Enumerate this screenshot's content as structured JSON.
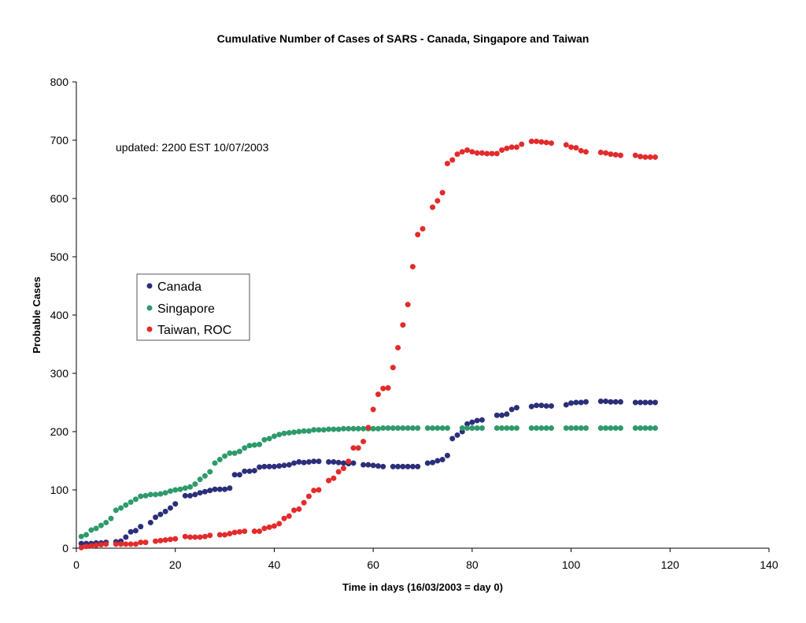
{
  "chart_data": {
    "type": "scatter",
    "title": "Cumulative Number of Cases of SARS - Canada, Singapore and Taiwan",
    "xlabel": "Time in days (16/03/2003 = day 0)",
    "ylabel": "Probable Cases",
    "xlim": [
      0,
      140
    ],
    "ylim": [
      0,
      800
    ],
    "xticks": [
      0,
      20,
      40,
      60,
      80,
      100,
      120,
      140
    ],
    "yticks": [
      0,
      100,
      200,
      300,
      400,
      500,
      600,
      700,
      800
    ],
    "annotation": "updated: 2200 EST 10/07/2003",
    "legend_position": "left-middle",
    "series": [
      {
        "name": "Canada",
        "color": "#2b2f7a",
        "points": [
          [
            1,
            8
          ],
          [
            2,
            8
          ],
          [
            3,
            8
          ],
          [
            4,
            9
          ],
          [
            5,
            9
          ],
          [
            6,
            10
          ],
          [
            8,
            11
          ],
          [
            9,
            12
          ],
          [
            10,
            19
          ],
          [
            11,
            28
          ],
          [
            12,
            30
          ],
          [
            13,
            37
          ],
          [
            15,
            44
          ],
          [
            16,
            53
          ],
          [
            17,
            58
          ],
          [
            18,
            63
          ],
          [
            19,
            69
          ],
          [
            20,
            76
          ],
          [
            22,
            90
          ],
          [
            23,
            90
          ],
          [
            24,
            92
          ],
          [
            25,
            95
          ],
          [
            26,
            97
          ],
          [
            27,
            99
          ],
          [
            28,
            101
          ],
          [
            29,
            101
          ],
          [
            30,
            101
          ],
          [
            31,
            103
          ],
          [
            32,
            126
          ],
          [
            33,
            126
          ],
          [
            34,
            132
          ],
          [
            35,
            132
          ],
          [
            36,
            133
          ],
          [
            37,
            139
          ],
          [
            38,
            140
          ],
          [
            39,
            140
          ],
          [
            40,
            140
          ],
          [
            41,
            141
          ],
          [
            42,
            142
          ],
          [
            43,
            143
          ],
          [
            44,
            146
          ],
          [
            45,
            148
          ],
          [
            46,
            147
          ],
          [
            47,
            148
          ],
          [
            48,
            149
          ],
          [
            49,
            149
          ],
          [
            51,
            148
          ],
          [
            52,
            148
          ],
          [
            53,
            147
          ],
          [
            54,
            146
          ],
          [
            55,
            145
          ],
          [
            56,
            146
          ],
          [
            58,
            143
          ],
          [
            59,
            143
          ],
          [
            60,
            142
          ],
          [
            61,
            141
          ],
          [
            62,
            140
          ],
          [
            64,
            140
          ],
          [
            65,
            140
          ],
          [
            66,
            140
          ],
          [
            67,
            140
          ],
          [
            68,
            140
          ],
          [
            69,
            140
          ],
          [
            71,
            146
          ],
          [
            72,
            147
          ],
          [
            73,
            150
          ],
          [
            74,
            152
          ],
          [
            75,
            159
          ],
          [
            76,
            188
          ],
          [
            77,
            194
          ],
          [
            78,
            200
          ],
          [
            79,
            213
          ],
          [
            80,
            216
          ],
          [
            81,
            219
          ],
          [
            82,
            220
          ],
          [
            85,
            228
          ],
          [
            86,
            228
          ],
          [
            87,
            230
          ],
          [
            88,
            238
          ],
          [
            89,
            241
          ],
          [
            92,
            243
          ],
          [
            93,
            245
          ],
          [
            94,
            245
          ],
          [
            95,
            244
          ],
          [
            96,
            244
          ],
          [
            99,
            246
          ],
          [
            100,
            249
          ],
          [
            101,
            250
          ],
          [
            102,
            250
          ],
          [
            103,
            251
          ],
          [
            106,
            252
          ],
          [
            107,
            252
          ],
          [
            108,
            251
          ],
          [
            109,
            251
          ],
          [
            110,
            251
          ],
          [
            113,
            250
          ],
          [
            114,
            250
          ],
          [
            115,
            250
          ],
          [
            116,
            250
          ],
          [
            117,
            250
          ]
        ]
      },
      {
        "name": "Singapore",
        "color": "#2e9a6a",
        "points": [
          [
            1,
            20
          ],
          [
            2,
            23
          ],
          [
            3,
            31
          ],
          [
            4,
            34
          ],
          [
            5,
            39
          ],
          [
            6,
            44
          ],
          [
            7,
            51
          ],
          [
            8,
            65
          ],
          [
            9,
            69
          ],
          [
            10,
            74
          ],
          [
            11,
            79
          ],
          [
            12,
            84
          ],
          [
            13,
            89
          ],
          [
            14,
            90
          ],
          [
            15,
            92
          ],
          [
            16,
            92
          ],
          [
            17,
            93
          ],
          [
            18,
            95
          ],
          [
            19,
            98
          ],
          [
            20,
            100
          ],
          [
            21,
            101
          ],
          [
            22,
            103
          ],
          [
            23,
            105
          ],
          [
            24,
            110
          ],
          [
            25,
            118
          ],
          [
            26,
            124
          ],
          [
            27,
            131
          ],
          [
            28,
            146
          ],
          [
            29,
            152
          ],
          [
            30,
            158
          ],
          [
            31,
            163
          ],
          [
            32,
            163
          ],
          [
            33,
            166
          ],
          [
            34,
            172
          ],
          [
            35,
            176
          ],
          [
            36,
            177
          ],
          [
            37,
            178
          ],
          [
            38,
            186
          ],
          [
            39,
            188
          ],
          [
            40,
            192
          ],
          [
            41,
            195
          ],
          [
            42,
            197
          ],
          [
            43,
            198
          ],
          [
            44,
            199
          ],
          [
            45,
            200
          ],
          [
            46,
            201
          ],
          [
            47,
            201
          ],
          [
            48,
            203
          ],
          [
            49,
            203
          ],
          [
            50,
            203
          ],
          [
            51,
            204
          ],
          [
            52,
            204
          ],
          [
            53,
            204
          ],
          [
            54,
            205
          ],
          [
            55,
            205
          ],
          [
            56,
            205
          ],
          [
            57,
            205
          ],
          [
            58,
            205
          ],
          [
            59,
            205
          ],
          [
            60,
            205
          ],
          [
            61,
            205
          ],
          [
            62,
            206
          ],
          [
            63,
            206
          ],
          [
            64,
            206
          ],
          [
            65,
            206
          ],
          [
            66,
            206
          ],
          [
            67,
            206
          ],
          [
            68,
            206
          ],
          [
            69,
            206
          ],
          [
            71,
            206
          ],
          [
            72,
            206
          ],
          [
            73,
            206
          ],
          [
            74,
            206
          ],
          [
            75,
            206
          ],
          [
            78,
            206
          ],
          [
            79,
            206
          ],
          [
            80,
            206
          ],
          [
            81,
            206
          ],
          [
            82,
            206
          ],
          [
            85,
            206
          ],
          [
            86,
            206
          ],
          [
            87,
            206
          ],
          [
            88,
            206
          ],
          [
            89,
            206
          ],
          [
            92,
            206
          ],
          [
            93,
            206
          ],
          [
            94,
            206
          ],
          [
            95,
            206
          ],
          [
            96,
            206
          ],
          [
            99,
            206
          ],
          [
            100,
            206
          ],
          [
            101,
            206
          ],
          [
            102,
            206
          ],
          [
            103,
            206
          ],
          [
            106,
            206
          ],
          [
            107,
            206
          ],
          [
            108,
            206
          ],
          [
            109,
            206
          ],
          [
            110,
            206
          ],
          [
            113,
            206
          ],
          [
            114,
            206
          ],
          [
            115,
            206
          ],
          [
            116,
            206
          ],
          [
            117,
            206
          ]
        ]
      },
      {
        "name": "Taiwan, ROC",
        "color": "#e32b2b",
        "points": [
          [
            1,
            1
          ],
          [
            2,
            3
          ],
          [
            3,
            4
          ],
          [
            4,
            5
          ],
          [
            5,
            6
          ],
          [
            6,
            7
          ],
          [
            8,
            7
          ],
          [
            9,
            7
          ],
          [
            10,
            7
          ],
          [
            11,
            7
          ],
          [
            12,
            7
          ],
          [
            13,
            10
          ],
          [
            14,
            10
          ],
          [
            16,
            12
          ],
          [
            17,
            13
          ],
          [
            18,
            14
          ],
          [
            19,
            15
          ],
          [
            20,
            16
          ],
          [
            22,
            20
          ],
          [
            23,
            19
          ],
          [
            24,
            19
          ],
          [
            25,
            19
          ],
          [
            26,
            20
          ],
          [
            27,
            22
          ],
          [
            29,
            23
          ],
          [
            30,
            23
          ],
          [
            31,
            25
          ],
          [
            32,
            27
          ],
          [
            33,
            28
          ],
          [
            34,
            29
          ],
          [
            36,
            29
          ],
          [
            37,
            29
          ],
          [
            38,
            34
          ],
          [
            39,
            36
          ],
          [
            40,
            38
          ],
          [
            41,
            42
          ],
          [
            42,
            51
          ],
          [
            43,
            55
          ],
          [
            44,
            65
          ],
          [
            45,
            67
          ],
          [
            46,
            78
          ],
          [
            47,
            89
          ],
          [
            48,
            99
          ],
          [
            49,
            100
          ],
          [
            51,
            116
          ],
          [
            52,
            120
          ],
          [
            53,
            131
          ],
          [
            54,
            137
          ],
          [
            55,
            149
          ],
          [
            56,
            172
          ],
          [
            57,
            172
          ],
          [
            58,
            183
          ],
          [
            59,
            207
          ],
          [
            60,
            238
          ],
          [
            61,
            264
          ],
          [
            62,
            274
          ],
          [
            63,
            275
          ],
          [
            64,
            310
          ],
          [
            65,
            344
          ],
          [
            66,
            383
          ],
          [
            67,
            418
          ],
          [
            68,
            483
          ],
          [
            69,
            538
          ],
          [
            70,
            548
          ],
          [
            72,
            585
          ],
          [
            73,
            596
          ],
          [
            74,
            610
          ],
          [
            75,
            660
          ],
          [
            76,
            666
          ],
          [
            77,
            676
          ],
          [
            78,
            680
          ],
          [
            79,
            683
          ],
          [
            80,
            680
          ],
          [
            81,
            678
          ],
          [
            82,
            678
          ],
          [
            83,
            677
          ],
          [
            84,
            677
          ],
          [
            85,
            677
          ],
          [
            86,
            683
          ],
          [
            87,
            686
          ],
          [
            88,
            688
          ],
          [
            89,
            688
          ],
          [
            90,
            693
          ],
          [
            92,
            698
          ],
          [
            93,
            698
          ],
          [
            94,
            697
          ],
          [
            95,
            696
          ],
          [
            96,
            695
          ],
          [
            99,
            692
          ],
          [
            100,
            688
          ],
          [
            101,
            687
          ],
          [
            102,
            682
          ],
          [
            103,
            680
          ],
          [
            106,
            679
          ],
          [
            107,
            678
          ],
          [
            108,
            676
          ],
          [
            109,
            675
          ],
          [
            110,
            674
          ],
          [
            113,
            674
          ],
          [
            114,
            672
          ],
          [
            115,
            671
          ],
          [
            116,
            671
          ],
          [
            117,
            671
          ]
        ]
      }
    ]
  }
}
